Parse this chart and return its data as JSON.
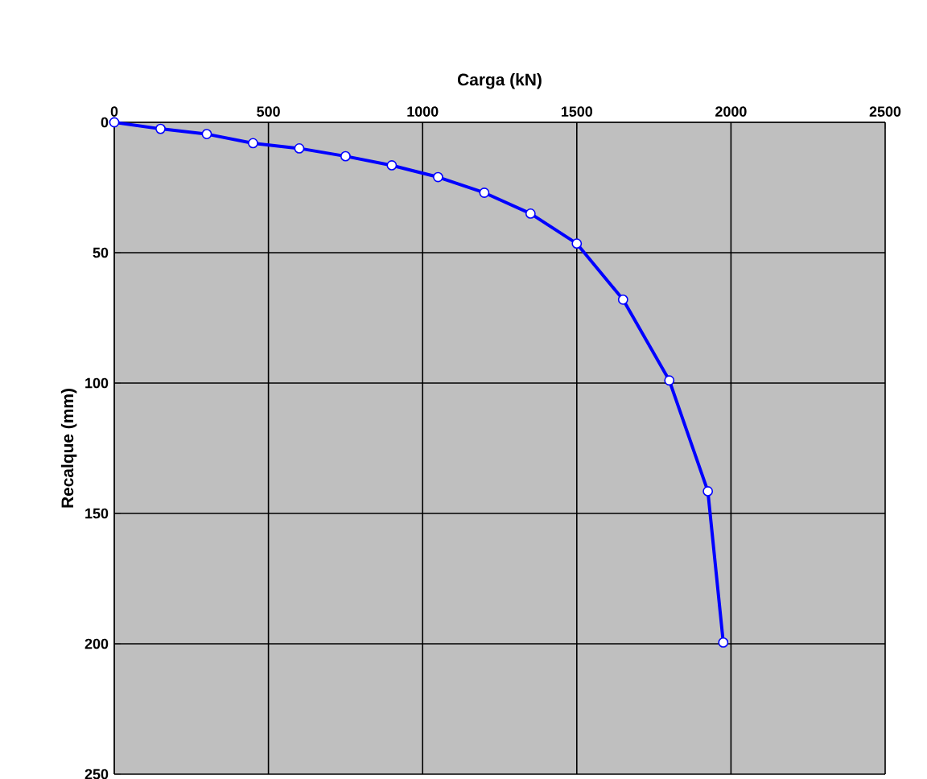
{
  "chart_data": {
    "type": "line",
    "xlabel": "Carga (kN)",
    "ylabel": "Recalque (mm)",
    "x": [
      0,
      150,
      300,
      450,
      600,
      750,
      900,
      1050,
      1200,
      1350,
      1500,
      1650,
      1800,
      1925,
      1975
    ],
    "series": [
      {
        "color": "#0000ff",
        "values": [
          0,
          2.5,
          4.5,
          8,
          10,
          13,
          16.5,
          21,
          27,
          35,
          46.5,
          68,
          99,
          141.5,
          199.5
        ]
      }
    ],
    "xlim": [
      0,
      2500
    ],
    "xticks": [
      0,
      500,
      1000,
      1500,
      2000,
      2500
    ],
    "ylim": [
      250,
      0
    ],
    "yticks": [
      0,
      50,
      100,
      150,
      200,
      250
    ],
    "grid": true,
    "marker": "circle",
    "line_style": "solid"
  }
}
